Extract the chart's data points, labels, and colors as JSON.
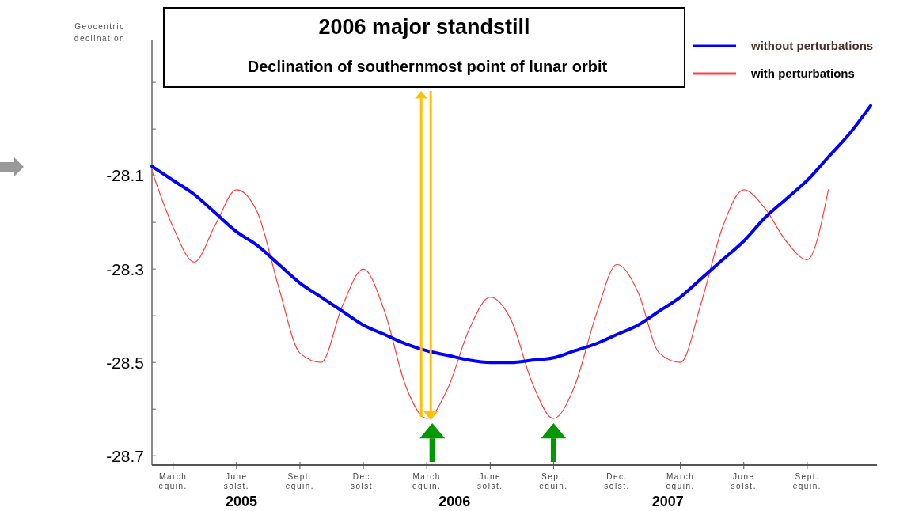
{
  "chart_data": {
    "type": "line",
    "title": "2006 major standstill",
    "subtitle": "Declination of southernmost point of lunar orbit",
    "ylabel": "Geocentric declination",
    "categories": [
      null,
      "March equin.",
      null,
      null,
      "June solst.",
      null,
      null,
      "Sept. equin.",
      null,
      null,
      "Dec. solst.",
      null,
      null,
      "March equin.",
      null,
      null,
      "June solst.",
      null,
      null,
      "Sept. equin.",
      null,
      null,
      "Dec. solst.",
      null,
      null,
      "March equin.",
      null,
      null,
      "June solst.",
      null,
      null,
      "Sept. equin.",
      null,
      null,
      null
    ],
    "ylim": [
      -28.72,
      -27.81
    ],
    "yticks": [
      -28.7,
      {
        "value": -28.6,
        "label": null
      },
      -28.5,
      {
        "value": -28.4,
        "label": null
      },
      -28.3,
      {
        "value": -28.2,
        "label": null
      },
      -28.1,
      {
        "value": -28.0,
        "label": null
      },
      {
        "value": -27.9,
        "label": null
      }
    ],
    "annotations": [
      "2005",
      "2006",
      "2007"
    ],
    "legend": "top right",
    "grid": false,
    "series": [
      {
        "name": "without perturbations",
        "color": "#0000ff",
        "values": [
          -28.08,
          -28.11,
          -28.14,
          -28.18,
          -28.22,
          -28.25,
          -28.29,
          -28.33,
          -28.36,
          -28.39,
          -28.42,
          -28.44,
          -28.46,
          -28.475,
          -28.485,
          -28.495,
          -28.5,
          -28.5,
          -28.495,
          -28.49,
          -28.475,
          -28.46,
          -28.44,
          -28.42,
          -28.39,
          -28.36,
          -28.32,
          -28.28,
          -28.24,
          -28.19,
          -28.15,
          -28.11,
          -28.06,
          -28.01,
          -27.95
        ]
      },
      {
        "name": "with perturbations",
        "color": "#ff4040",
        "values": [
          -28.09,
          -28.21,
          -28.285,
          -28.205,
          -28.13,
          -28.18,
          -28.34,
          -28.48,
          -28.5,
          -28.38,
          -28.3,
          -28.39,
          -28.55,
          -28.62,
          -28.555,
          -28.43,
          -28.36,
          -28.41,
          -28.545,
          -28.62,
          -28.55,
          -28.4,
          -28.29,
          -28.35,
          -28.48,
          -28.5,
          -28.37,
          -28.21,
          -28.13,
          -28.17,
          -28.24,
          -28.28,
          -28.13,
          null,
          null
        ]
      }
    ]
  }
}
